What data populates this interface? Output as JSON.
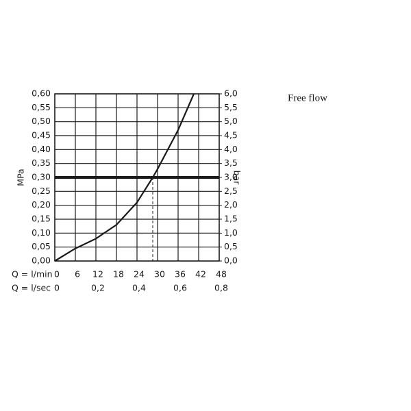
{
  "chart_data": {
    "type": "line",
    "title": "Free flow",
    "ylabel": "MPa",
    "y2label": "bar",
    "xlabel": "Q = l/min",
    "x2label": "Q = l/sec",
    "x": [
      0,
      6,
      12,
      18,
      24,
      28.6,
      30,
      36,
      40.6
    ],
    "series": [
      {
        "color": "#1a1a1a",
        "values": [
          0,
          0.045,
          0.08,
          0.13,
          0.21,
          0.3,
          0.33,
          0.47,
          0.6
        ]
      }
    ],
    "hline": 0.3,
    "vline": 28.6,
    "grid": true,
    "xlim": [
      0,
      48
    ],
    "xticks": [
      0,
      6,
      12,
      18,
      24,
      30,
      36,
      42,
      48
    ],
    "x2lim": [
      0,
      0.8
    ],
    "x2ticks": [
      0,
      {
        "value": 0.2,
        "label": "0,2"
      },
      {
        "value": 0.4,
        "label": "0,4"
      },
      {
        "value": 0.6,
        "label": "0,6"
      },
      {
        "value": 0.8,
        "label": "0,8"
      }
    ],
    "ylim": [
      0,
      0.6
    ],
    "yticks": [
      {
        "value": 0,
        "label": "0,00"
      },
      {
        "value": 0.05,
        "label": "0,05"
      },
      {
        "value": 0.1,
        "label": "0,10"
      },
      {
        "value": 0.15,
        "label": "0,15"
      },
      {
        "value": 0.2,
        "label": "0,20"
      },
      {
        "value": 0.25,
        "label": "0,25"
      },
      {
        "value": 0.3,
        "label": "0,30"
      },
      {
        "value": 0.35,
        "label": "0,35"
      },
      {
        "value": 0.4,
        "label": "0,40"
      },
      {
        "value": 0.45,
        "label": "0,45"
      },
      {
        "value": 0.5,
        "label": "0,50"
      },
      {
        "value": 0.55,
        "label": "0,55"
      },
      {
        "value": 0.6,
        "label": "0,60"
      }
    ],
    "y2lim": [
      0,
      6
    ],
    "y2ticks": [
      {
        "value": 0,
        "label": "0,0"
      },
      {
        "value": 0.5,
        "label": "0,5"
      },
      {
        "value": 1,
        "label": "1,0"
      },
      {
        "value": 1.5,
        "label": "1,5"
      },
      {
        "value": 2,
        "label": "2,0"
      },
      {
        "value": 2.5,
        "label": "2,5"
      },
      {
        "value": 3,
        "label": "3,0"
      },
      {
        "value": 3.5,
        "label": "3,5"
      },
      {
        "value": 4,
        "label": "4,0"
      },
      {
        "value": 4.5,
        "label": "4,5"
      },
      {
        "value": 5,
        "label": "5,0"
      },
      {
        "value": 5.5,
        "label": "5,5"
      },
      {
        "value": 6,
        "label": "6,0"
      }
    ]
  }
}
